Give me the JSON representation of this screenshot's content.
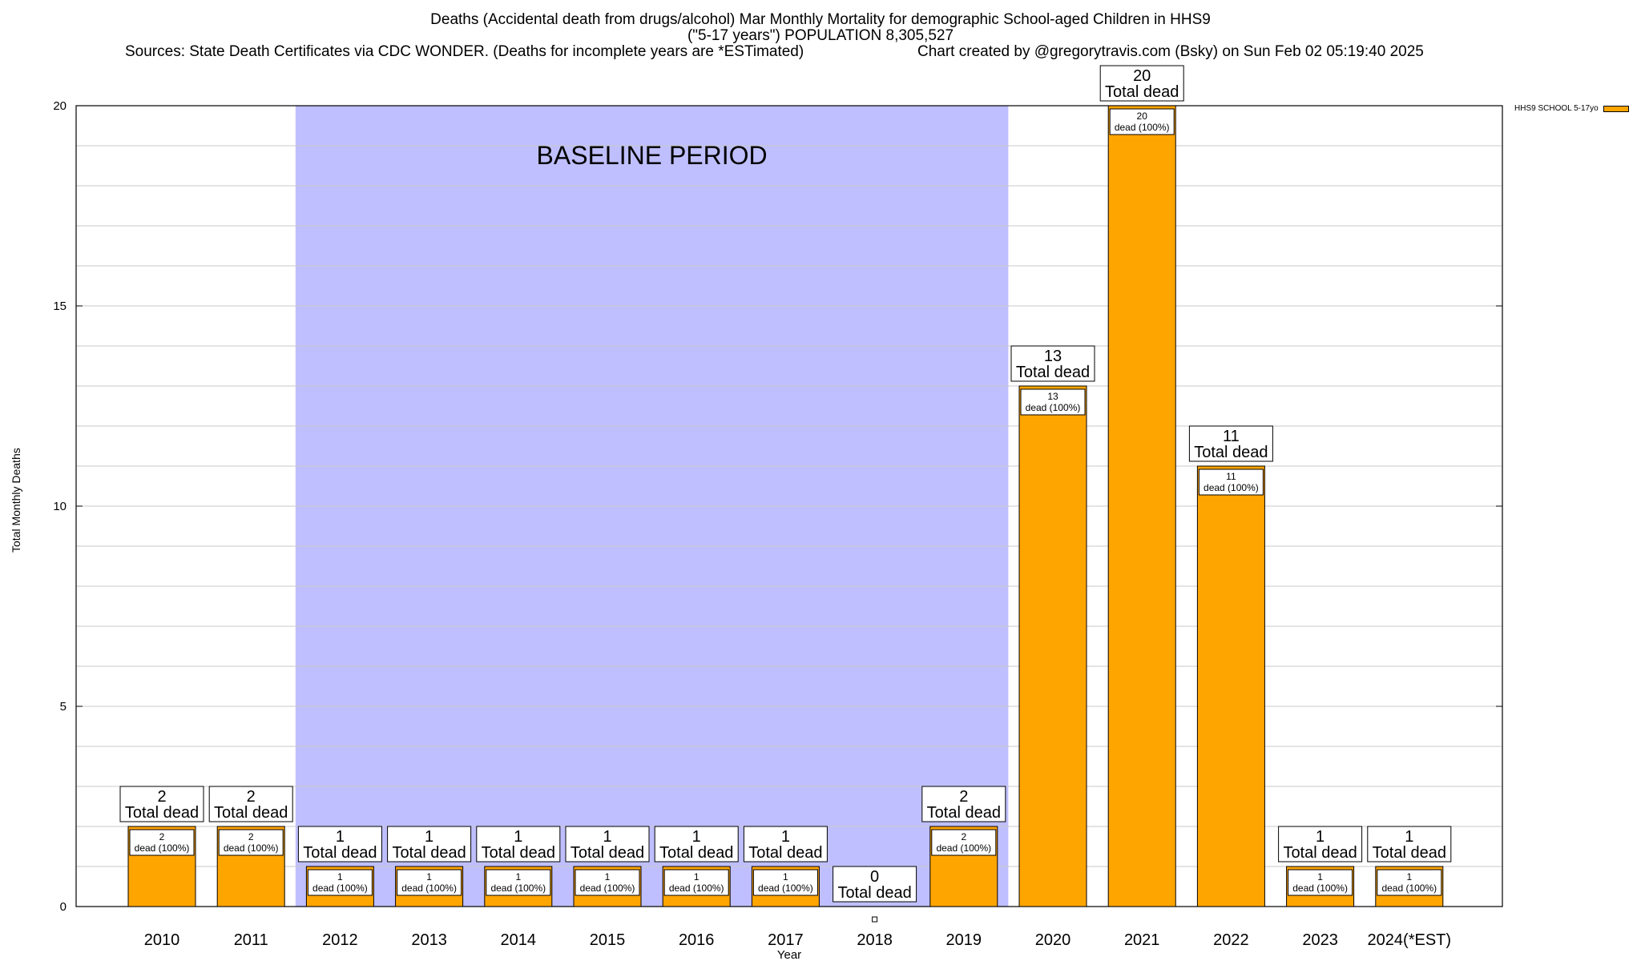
{
  "title": {
    "line1": "Deaths (Accidental death from drugs/alcohol) Mar Monthly Mortality for demographic School-aged Children in HHS9",
    "line2": "(\"5-17 years\") POPULATION 8,305,527",
    "sources": "Sources: State Death Certificates via CDC WONDER. (Deaths for incomplete years are *ESTimated)",
    "credit": "Chart created by @gregorytravis.com (Bsky) on Sun Feb 02 05:19:40 2025"
  },
  "legend": {
    "label": "HHS9 SCHOOL 5-17yo"
  },
  "colors": {
    "bar": "#FFA500",
    "baseline": "#BFBFFF",
    "grid": "#c8c8c8"
  },
  "chart_data": {
    "type": "bar",
    "xlabel": "Year",
    "ylabel": "Total Monthly Deaths",
    "ylim": [
      0,
      20
    ],
    "yticks": [
      0,
      5,
      10,
      15,
      20
    ],
    "grid": true,
    "legend_position": "top-right",
    "categories": [
      "2010",
      "2011",
      "2012",
      "2013",
      "2014",
      "2015",
      "2016",
      "2017",
      "2018",
      "2019",
      "2020",
      "2021",
      "2022",
      "2023",
      "2024(*EST)"
    ],
    "series": [
      {
        "name": "HHS9 SCHOOL 5-17yo",
        "values": [
          2,
          2,
          1,
          1,
          1,
          1,
          1,
          1,
          0,
          2,
          13,
          20,
          11,
          1,
          1
        ]
      }
    ],
    "total_label": "Total dead",
    "inner_label": "dead (100%)",
    "baseline": {
      "label": "BASELINE PERIOD",
      "start": "2012",
      "end": "2019"
    }
  }
}
